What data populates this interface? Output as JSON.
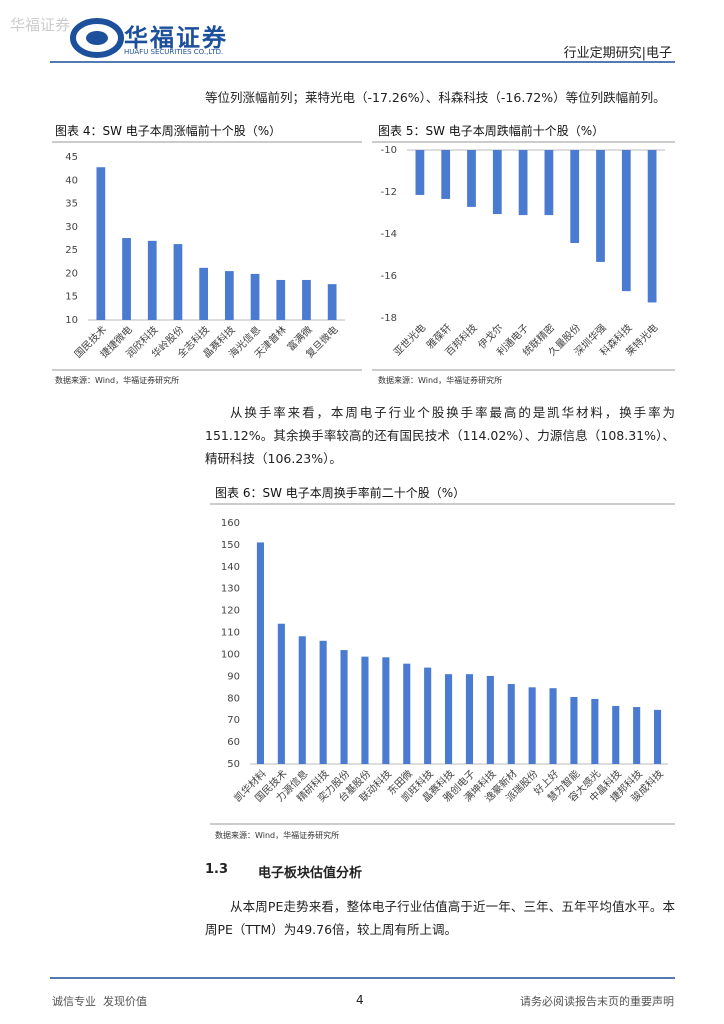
{
  "header": {
    "watermark": "华福证券",
    "logo_cn": "华福证券",
    "logo_en": "HUAFU SECURITIES CO.,LTD.",
    "report_type": "行业定期研究|电子"
  },
  "paragraphs": [
    "等位列涨幅前列；莱特光电（-17.26%）、科森科技（-16.72%）等位列跌幅前列。",
    "从换手率来看，本周电子行业个股换手率最高的是凯华材料，换手率为151.12%。其余换手率较高的还有国民技术（114.02%）、力源信息（108.31%）、精研科技（106.23%）。",
    "从本周PE走势来看，整体电子行业估值高于近一年、三年、五年平均值水平。本周PE（TTM）为49.76倍，较上周有所上调。"
  ],
  "chart_data": [
    {
      "type": "bar",
      "title": "图表 4：SW 电子本周涨幅前十个股（%）",
      "source": "数据来源：Wind，华福证券研究所",
      "categories": [
        "国民技术",
        "捷捷微电",
        "润欣科技",
        "华岭股份",
        "全志科技",
        "晶赛科技",
        "海光信息",
        "天津普林",
        "富满微",
        "复旦微电"
      ],
      "values": [
        42.8,
        27.6,
        27.0,
        26.3,
        21.2,
        20.5,
        19.9,
        18.6,
        18.6,
        17.7
      ],
      "color": "#4a7bd0",
      "ylim": [
        10,
        45
      ],
      "yticks": [
        10,
        15,
        20,
        25,
        30,
        35,
        40,
        45
      ]
    },
    {
      "type": "bar",
      "title": "图表 5：SW 电子本周跌幅前十个股（%）",
      "source": "数据来源：Wind，华福证券研究所",
      "categories": [
        "亚世光电",
        "雅葆轩",
        "百邦科技",
        "伊戈尔",
        "利通电子",
        "统联精密",
        "久量股份",
        "深圳华强",
        "科森科技",
        "莱特光电"
      ],
      "values": [
        -12.14,
        -12.33,
        -12.71,
        -13.05,
        -13.1,
        -13.1,
        -14.43,
        -15.33,
        -16.72,
        -17.26
      ],
      "color": "#4a7bd0",
      "ylim": [
        -18,
        -10
      ],
      "yticks": [
        -18,
        -16,
        -14,
        -12,
        -10
      ]
    },
    {
      "type": "bar",
      "title": "图表 6：SW 电子本周换手率前二十个股（%）",
      "source": "数据来源：Wind，华福证券研究所",
      "categories": [
        "凯华材料",
        "国民技术",
        "力源信息",
        "精研科技",
        "奕力股份",
        "台基股份",
        "联动科技",
        "东田微",
        "凯旺科技",
        "晶赛科技",
        "雅创电子",
        "满坤科技",
        "逸豪新材",
        "派瑞股份",
        "好上好",
        "慧为智能",
        "容大感光",
        "中晶科技",
        "捷邦科技",
        "骏成科技"
      ],
      "values": [
        151.12,
        114.02,
        108.31,
        106.23,
        102,
        99,
        98.7,
        95.8,
        94,
        91,
        91,
        90.2,
        86.5,
        85,
        84.6,
        80.6,
        79.7,
        76.5,
        76,
        74.7
      ],
      "color": "#4a7bd0",
      "ylim": [
        50,
        160
      ],
      "yticks": [
        50,
        60,
        70,
        80,
        90,
        100,
        110,
        120,
        130,
        140,
        150,
        160
      ]
    }
  ],
  "section": {
    "number": "1.3",
    "title": "电子板块估值分析"
  },
  "footer": {
    "left": "诚信专业  发现价值",
    "page": "4",
    "right": "请务必阅读报告末页的重要声明"
  }
}
